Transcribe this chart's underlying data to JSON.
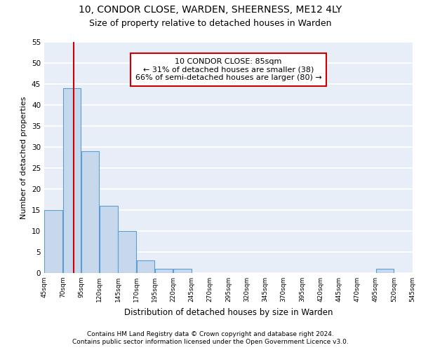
{
  "title1": "10, CONDOR CLOSE, WARDEN, SHEERNESS, ME12 4LY",
  "title2": "Size of property relative to detached houses in Warden",
  "xlabel": "Distribution of detached houses by size in Warden",
  "ylabel": "Number of detached properties",
  "bin_edges": [
    45,
    70,
    95,
    120,
    145,
    170,
    195,
    220,
    245,
    270,
    295,
    320,
    345,
    370,
    395,
    420,
    445,
    470,
    495,
    520,
    545
  ],
  "bar_values": [
    15,
    44,
    29,
    16,
    10,
    3,
    1,
    1,
    0,
    0,
    0,
    0,
    0,
    0,
    0,
    0,
    0,
    0,
    1,
    0
  ],
  "bar_color": "#c8d8ec",
  "bar_edge_color": "#5a9fd4",
  "property_size": 85,
  "vline_color": "#cc0000",
  "annotation_text": "10 CONDOR CLOSE: 85sqm\n← 31% of detached houses are smaller (38)\n66% of semi-detached houses are larger (80) →",
  "annotation_boxcolor": "white",
  "annotation_edgecolor": "#cc0000",
  "ylim": [
    0,
    55
  ],
  "yticks": [
    0,
    5,
    10,
    15,
    20,
    25,
    30,
    35,
    40,
    45,
    50,
    55
  ],
  "background_color": "#e8eef8",
  "grid_color": "white",
  "footer1": "Contains HM Land Registry data © Crown copyright and database right 2024.",
  "footer2": "Contains public sector information licensed under the Open Government Licence v3.0.",
  "title1_fontsize": 10,
  "title2_fontsize": 9,
  "xlabel_fontsize": 8.5,
  "ylabel_fontsize": 8,
  "annotation_fontsize": 8,
  "footer_fontsize": 6.5
}
